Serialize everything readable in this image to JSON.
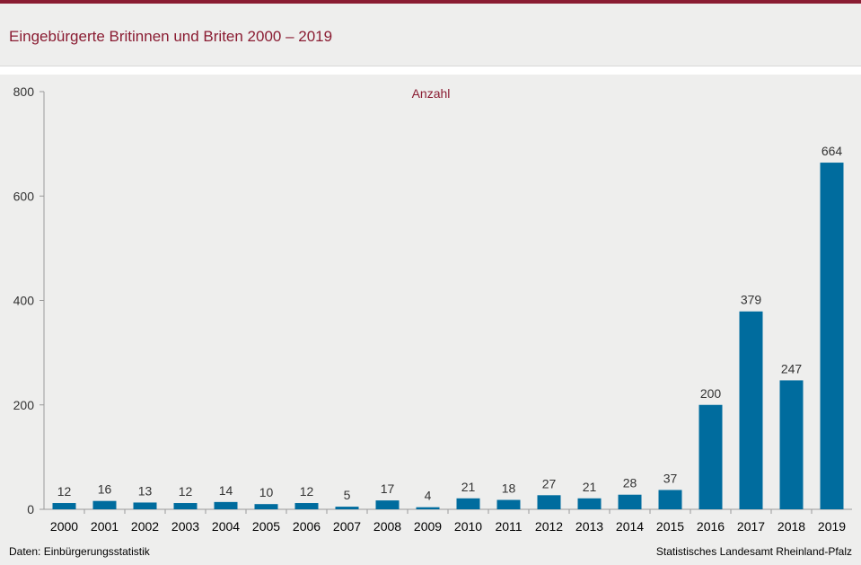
{
  "header": {
    "title": "Eingebürgerte Britinnen und Briten 2000 – 2019"
  },
  "footer": {
    "source": "Daten:  Einbürgerungsstatistik",
    "publisher": "Statistisches Landesamt  Rheinland-Pfalz"
  },
  "colors": {
    "accent": "#8a1c32",
    "bar": "#006c9e",
    "background": "#eeeeed"
  },
  "chart_data": {
    "type": "bar",
    "title": "Eingebürgerte Britinnen und Briten 2000 – 2019",
    "ylabel": "Anzahl",
    "xlabel": "",
    "categories": [
      "2000",
      "2001",
      "2002",
      "2003",
      "2004",
      "2005",
      "2006",
      "2007",
      "2008",
      "2009",
      "2010",
      "2011",
      "2012",
      "2013",
      "2014",
      "2015",
      "2016",
      "2017",
      "2018",
      "2019"
    ],
    "values": [
      12,
      16,
      13,
      12,
      14,
      10,
      12,
      5,
      17,
      4,
      21,
      18,
      27,
      21,
      28,
      37,
      200,
      379,
      247,
      664
    ],
    "ylim": [
      0,
      800
    ],
    "yticks": [
      0,
      200,
      400,
      600,
      800
    ],
    "grid": false,
    "data_labels": true
  }
}
